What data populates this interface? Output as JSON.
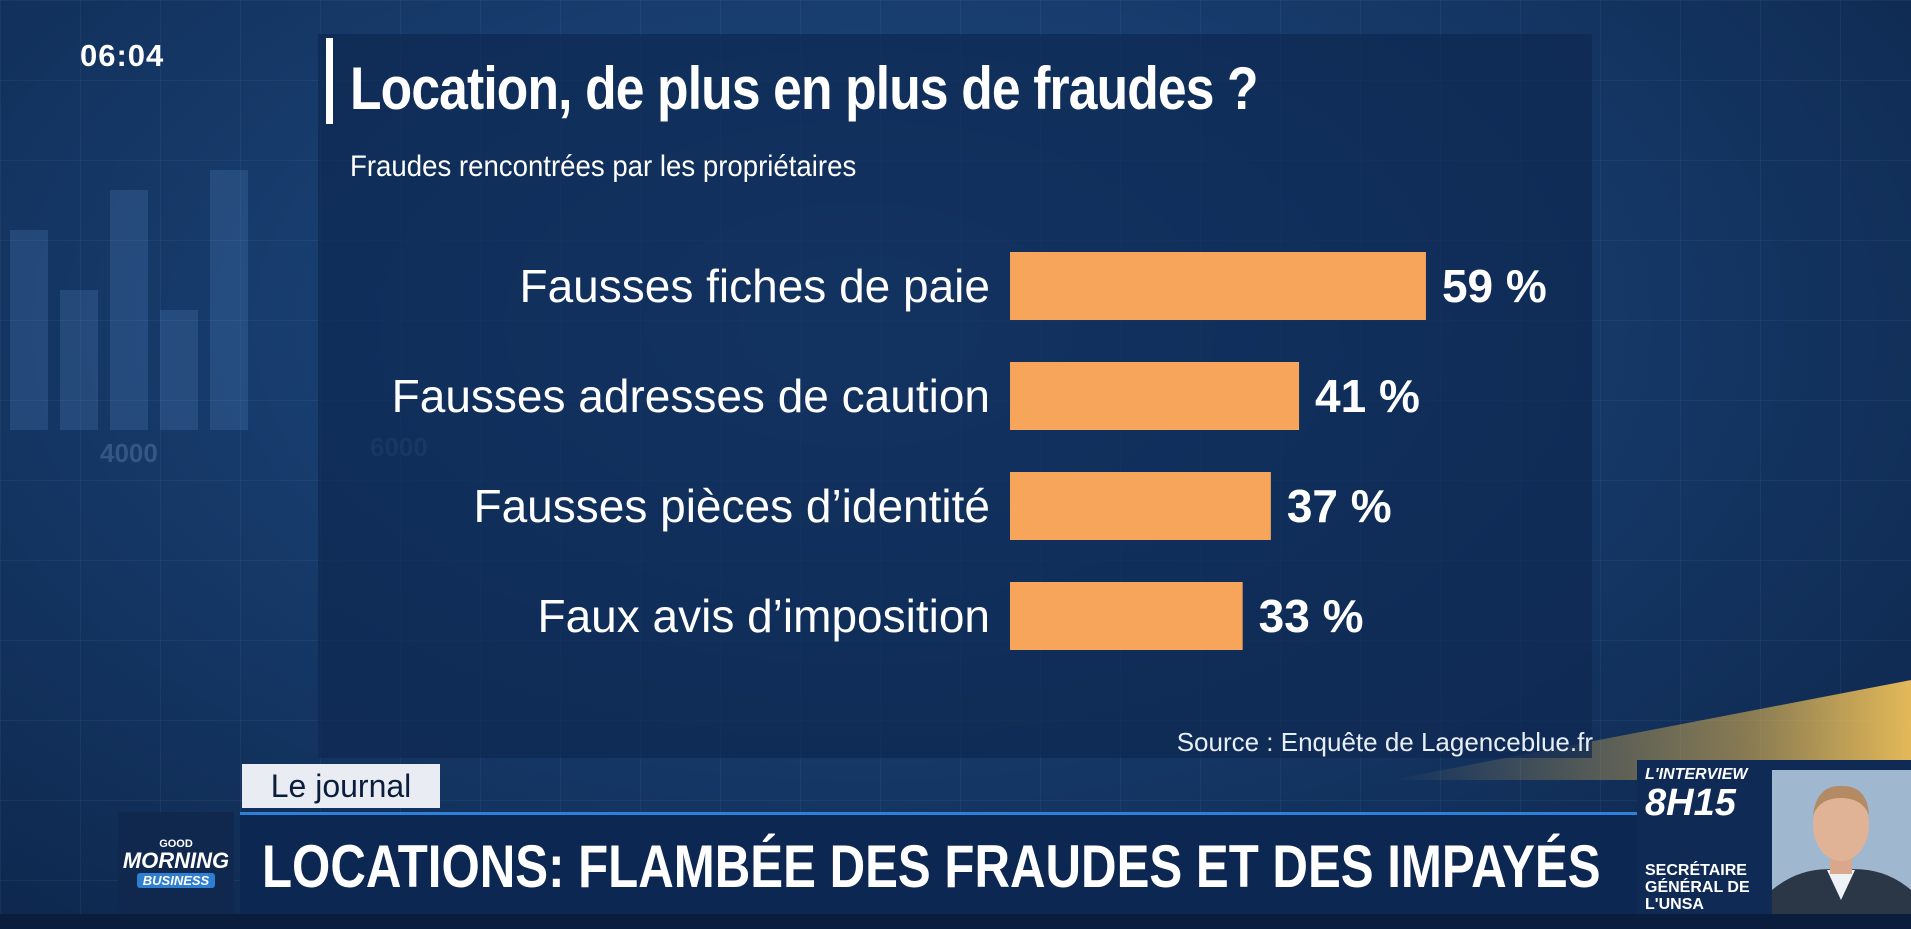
{
  "clock": "06:04",
  "chart_data": {
    "type": "bar",
    "orientation": "horizontal",
    "title": "Location, de plus en plus de fraudes ?",
    "subtitle": "Fraudes rencontrées par les propriétaires",
    "categories": [
      "Fausses fiches de paie",
      "Fausses adresses de caution",
      "Fausses pièces d’identité",
      "Faux avis d’imposition"
    ],
    "values": [
      59,
      41,
      37,
      33
    ],
    "value_labels": [
      "59 %",
      "41 %",
      "37 %",
      "33 %"
    ],
    "bar_color": "#f7a55a",
    "xlim": [
      0,
      100
    ],
    "grid": false,
    "source": "Source : Enquête de Lagenceblue.fr"
  },
  "lower_third": {
    "tag": "Le journal",
    "logo": {
      "line1": "GOOD",
      "line2": "MORNING",
      "line3": "BUSINESS"
    },
    "headline": "LOCATIONS: FLAMBÉE DES FRAUDES ET DES IMPAYÉS"
  },
  "interview": {
    "label": "L'INTERVIEW",
    "time": "8H15",
    "role": "SECRÉTAIRE GÉNÉRAL DE L'UNSA"
  }
}
